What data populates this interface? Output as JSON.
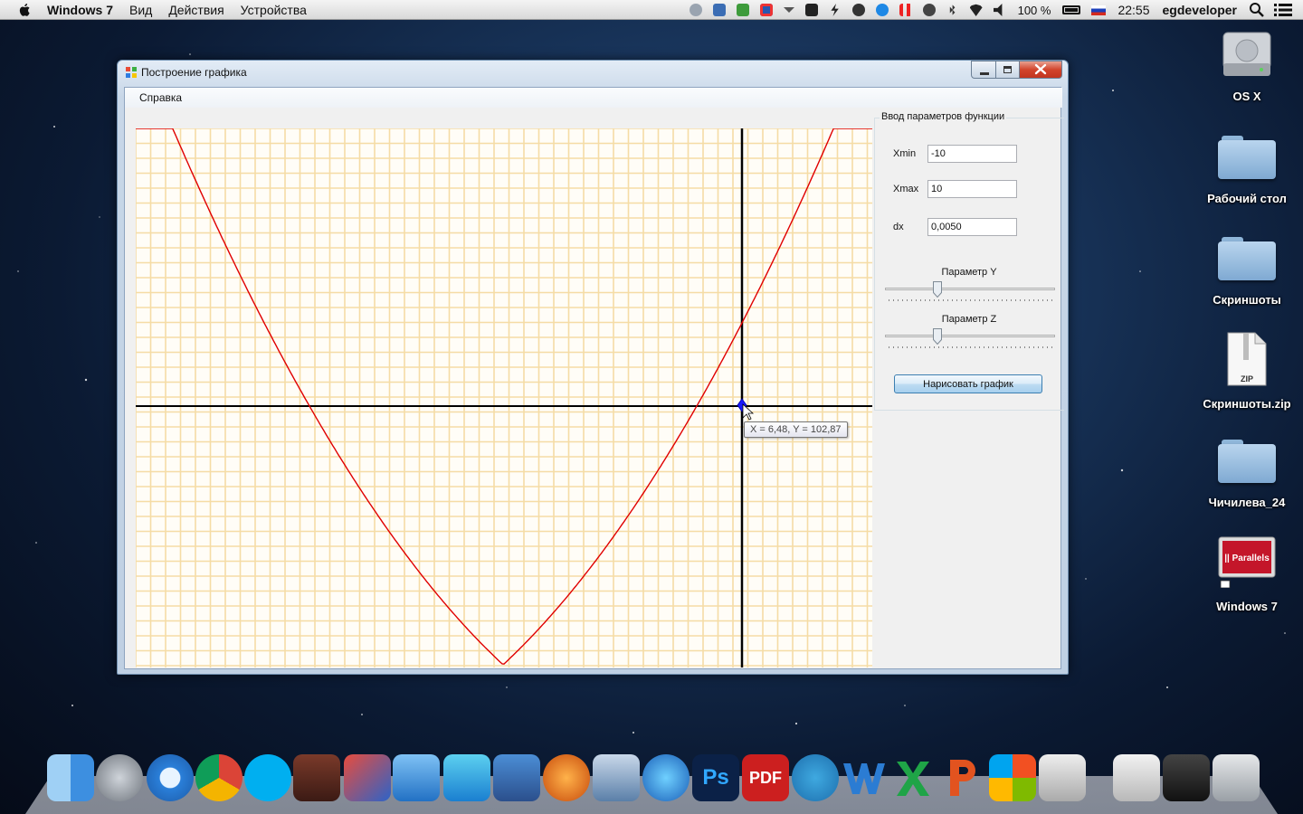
{
  "menubar": {
    "app_name": "Windows 7",
    "menus": [
      "Вид",
      "Действия",
      "Устройства"
    ],
    "battery": "100 %",
    "time": "22:55",
    "user": "egdeveloper"
  },
  "desktop": {
    "items": [
      {
        "label": "OS X",
        "icon": "hard-drive-icon"
      },
      {
        "label": "Рабочий стол",
        "icon": "folder-icon"
      },
      {
        "label": "Скриншоты",
        "icon": "folder-icon"
      },
      {
        "label": "Скриншоты.zip",
        "icon": "zip-archive-icon",
        "badge": "ZIP"
      },
      {
        "label": "Чичилева_24",
        "icon": "folder-icon"
      },
      {
        "label": "Windows 7",
        "icon": "parallels-vm-icon",
        "badge": "|| Parallels"
      }
    ]
  },
  "window": {
    "title": "Построение графика",
    "menu": [
      "Справка"
    ],
    "group_title": "Ввод параметров функции",
    "fields": [
      {
        "label": "Xmin",
        "value": "-10"
      },
      {
        "label": "Xmax",
        "value": "10"
      },
      {
        "label": "dx",
        "value": "0,0050"
      }
    ],
    "sliders": [
      {
        "label": "Параметр Y",
        "position": 0.31
      },
      {
        "label": "Параметр Z",
        "position": 0.31
      }
    ],
    "draw_button": "Нарисовать график",
    "tooltip": "X = 6,48, Y = 102,87",
    "colors": {
      "curve": "#e00000",
      "grid": "#f5dca5",
      "axes": "#000000",
      "marker": "#1a1aff"
    }
  },
  "dock": {
    "icons": [
      "finder-icon",
      "launchpad-icon",
      "safari-icon",
      "chrome-icon",
      "skype-icon",
      "folx-icon",
      "mail-icon",
      "xcode-icon",
      "jetbrains-icon",
      "instruments-icon",
      "mathematica-icon",
      "parallels-desktop-icon",
      "itunes-icon",
      "photoshop-icon",
      "pdf-reader-icon",
      "simplenote-icon",
      "word-icon",
      "excel-icon",
      "powerpoint-icon",
      "windows-icon",
      "screenshot-tool-icon",
      "downloads-stack-icon",
      "utilities-stack-icon",
      "trash-icon"
    ],
    "labels": {
      "photoshop": "Ps",
      "pdf": "PDF"
    }
  }
}
